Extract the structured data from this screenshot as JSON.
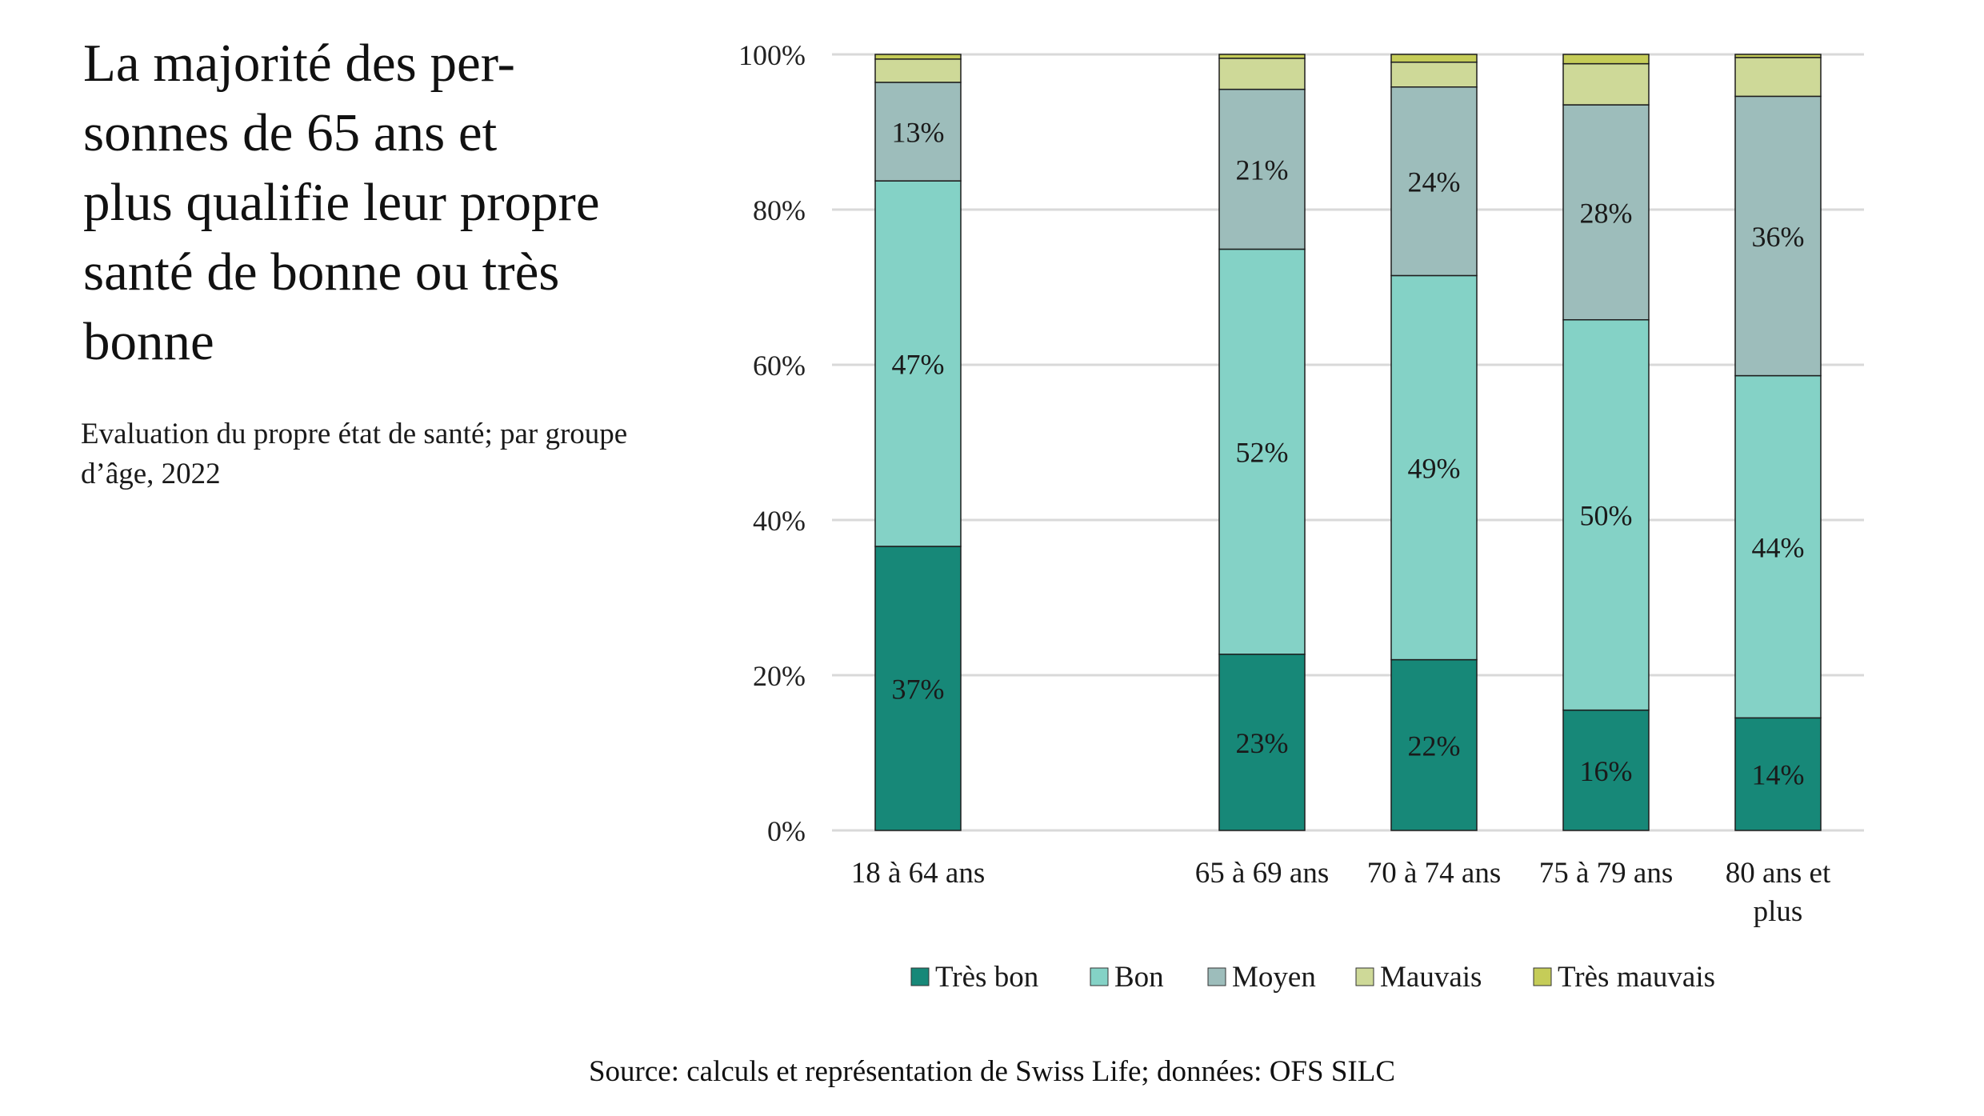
{
  "title": "La majorité des per-sonnes de 65 ans et plus qualifie leur propre santé de bonne ou très bonne",
  "title_lines": [
    "La majorité des per-",
    "sonnes de 65 ans et",
    "plus qualifie leur propre",
    "santé de bonne ou très",
    "bonne"
  ],
  "subtitle_lines": [
    "Evaluation du propre état de santé; par groupe",
    "d’âge, 2022"
  ],
  "source": "Source: calculs et représentation de Swiss Life; données: OFS SILC",
  "chart_data": {
    "type": "bar",
    "stacked": true,
    "normalized": true,
    "categories": [
      "18 à 64 ans",
      "",
      "65 à 69 ans",
      "70 à 74 ans",
      "75 à 79 ans",
      "80 ans et plus"
    ],
    "category_label_lines": [
      [
        "18 à 64 ans"
      ],
      [],
      [
        "65 à 69 ans"
      ],
      [
        "70 à 74 ans"
      ],
      [
        "75 à 79 ans"
      ],
      [
        "80 ans et",
        "plus"
      ]
    ],
    "series": [
      {
        "name": "Très bon",
        "color": "#178878",
        "values": [
          36.6,
          null,
          22.7,
          22.0,
          15.5,
          14.5
        ],
        "labels": [
          "37%",
          "",
          "23%",
          "22%",
          "16%",
          "14%"
        ]
      },
      {
        "name": "Bon",
        "color": "#84d2c6",
        "values": [
          47.1,
          null,
          52.2,
          49.5,
          50.3,
          44.1
        ],
        "labels": [
          "47%",
          "",
          "52%",
          "49%",
          "50%",
          "44%"
        ]
      },
      {
        "name": "Moyen",
        "color": "#9dbdbb",
        "values": [
          12.7,
          null,
          20.6,
          24.3,
          27.7,
          36.0
        ],
        "labels": [
          "13%",
          "",
          "21%",
          "24%",
          "28%",
          "36%"
        ]
      },
      {
        "name": "Mauvais",
        "color": "#ced998",
        "values": [
          3.0,
          null,
          4.0,
          3.2,
          5.3,
          5.0
        ],
        "labels": [
          "",
          "",
          "",
          "",
          "",
          ""
        ]
      },
      {
        "name": "Très mauvais",
        "color": "#c5cc58",
        "values": [
          0.6,
          null,
          0.5,
          1.0,
          1.2,
          0.4
        ],
        "labels": [
          "",
          "",
          "",
          "",
          "",
          ""
        ]
      }
    ],
    "ylim": [
      0,
      100
    ],
    "yticks": [
      0,
      20,
      40,
      60,
      80,
      100
    ],
    "ytick_labels": [
      "0%",
      "20%",
      "40%",
      "60%",
      "80%",
      "100%"
    ],
    "xlabel": "",
    "ylabel": "",
    "grid": true,
    "legend_position": "bottom"
  }
}
